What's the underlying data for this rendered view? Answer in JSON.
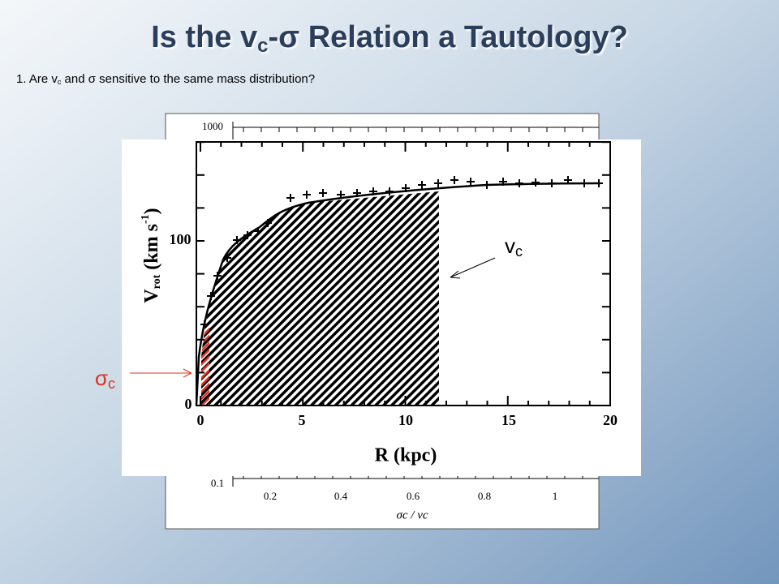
{
  "slide": {
    "title_parts": [
      "Is the v",
      "c",
      "-σ Relation a Tautology?"
    ],
    "subtitle_parts": [
      "1. Are v",
      "c",
      " and σ sensitive to the same mass distribution?"
    ]
  },
  "back_figure": {
    "y_labels": [
      "1000",
      "0.1"
    ],
    "x_labels": [
      "0.2",
      "0.4",
      "0.6",
      "0.8",
      "1"
    ],
    "x_title": "σc / vc"
  },
  "front_figure": {
    "y_title_parts": [
      "V",
      "rot",
      " (km s",
      "-1",
      ")"
    ],
    "y_labels": [
      "100",
      "0"
    ],
    "x_labels": [
      "0",
      "5",
      "10",
      "15",
      "20"
    ],
    "x_title": "R (kpc)"
  },
  "annotations": {
    "vc_parts": [
      "v",
      "c"
    ],
    "sigma_parts": [
      "σ",
      "c"
    ]
  }
}
